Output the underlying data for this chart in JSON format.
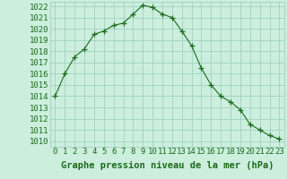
{
  "x": [
    0,
    1,
    2,
    3,
    4,
    5,
    6,
    7,
    8,
    9,
    10,
    11,
    12,
    13,
    14,
    15,
    16,
    17,
    18,
    19,
    20,
    21,
    22,
    23
  ],
  "y": [
    1014.0,
    1016.0,
    1017.5,
    1018.2,
    1019.5,
    1019.8,
    1020.3,
    1020.5,
    1021.3,
    1022.1,
    1021.9,
    1021.3,
    1021.0,
    1019.8,
    1018.5,
    1016.5,
    1015.0,
    1014.0,
    1013.5,
    1012.8,
    1011.5,
    1011.0,
    1010.5,
    1010.2
  ],
  "ylim": [
    1009.5,
    1022.4
  ],
  "yticks": [
    1010,
    1011,
    1012,
    1013,
    1014,
    1015,
    1016,
    1017,
    1018,
    1019,
    1020,
    1021,
    1022
  ],
  "xticks": [
    0,
    1,
    2,
    3,
    4,
    5,
    6,
    7,
    8,
    9,
    10,
    11,
    12,
    13,
    14,
    15,
    16,
    17,
    18,
    19,
    20,
    21,
    22,
    23
  ],
  "xlabel": "Graphe pression niveau de la mer (hPa)",
  "line_color": "#1a6b1a",
  "marker": "+",
  "bg_color": "#cceedd",
  "grid_color": "#99ccbb",
  "text_color": "#1a6b1a",
  "tick_fontsize": 6.5,
  "xlabel_fontsize": 7.5
}
